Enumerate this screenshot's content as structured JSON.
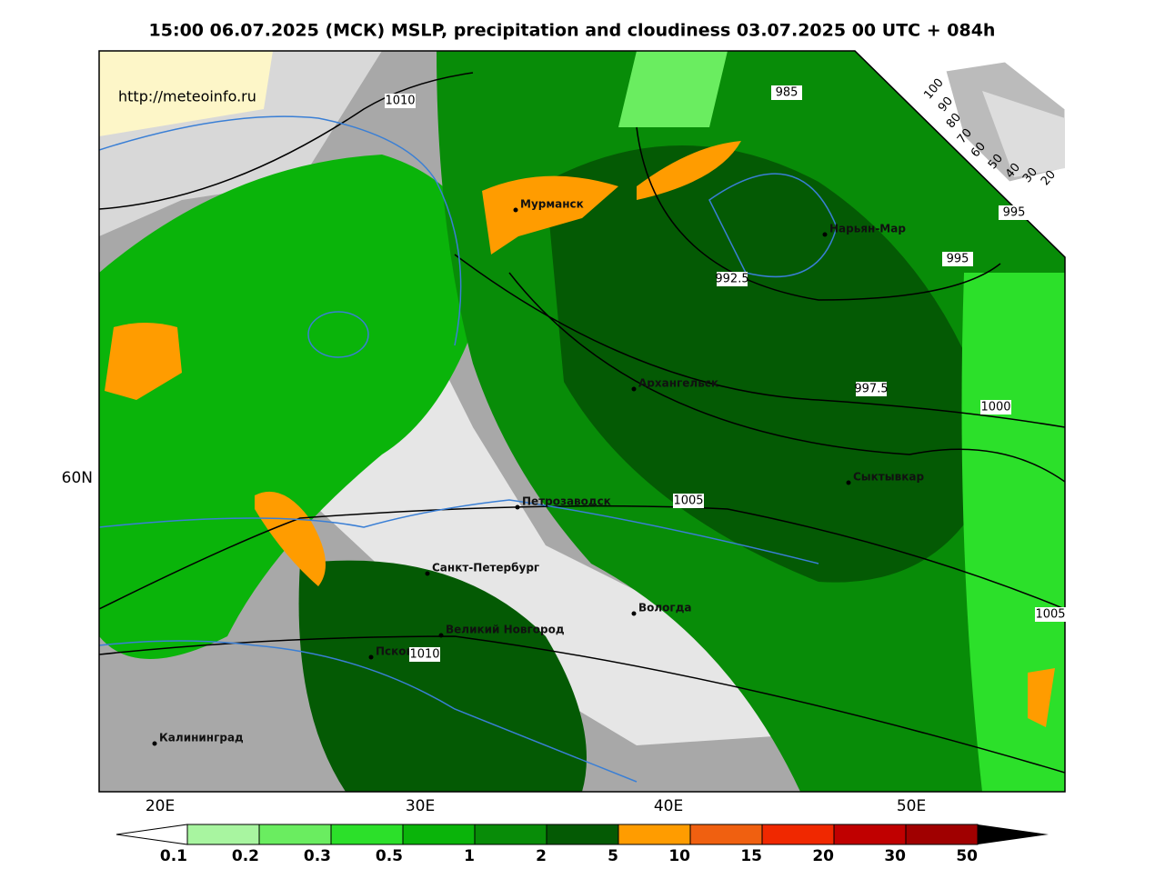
{
  "header": {
    "title": "15:00 06.07.2025 (МСК) MSLP, precipitation and cloudiness 03.07.2025 00 UTC + 084h"
  },
  "map": {
    "url": "http://meteoinfo.ru",
    "lat_labels": [
      "60N"
    ],
    "lon_labels": [
      "20E",
      "30E",
      "40E",
      "50E"
    ],
    "cities": [
      "Мурманск",
      "Нарьян-Мар",
      "Архангельск",
      "Сыктывкар",
      "Петрозаводск",
      "Санкт-Петербург",
      "Вологда",
      "Великий Новгород",
      "Псков",
      "Калининград"
    ],
    "isobar_labels": [
      "1010",
      "1010",
      "1005",
      "1005",
      "1000",
      "997.5",
      "995",
      "995",
      "992.5",
      "985"
    ],
    "cloud_scale": [
      "100",
      "90",
      "80",
      "70",
      "60",
      "50",
      "40",
      "30",
      "20"
    ]
  },
  "legend": {
    "labels": [
      "0.1",
      "0.2",
      "0.3",
      "0.5",
      "1",
      "2",
      "5",
      "10",
      "15",
      "20",
      "30",
      "50"
    ],
    "colors": [
      "#a8f5a0",
      "#6aed60",
      "#2ce02a",
      "#0ab40a",
      "#088c08",
      "#045a04",
      "#ff9c00",
      "#f06010",
      "#f02800",
      "#c00000",
      "#a00000"
    ]
  }
}
